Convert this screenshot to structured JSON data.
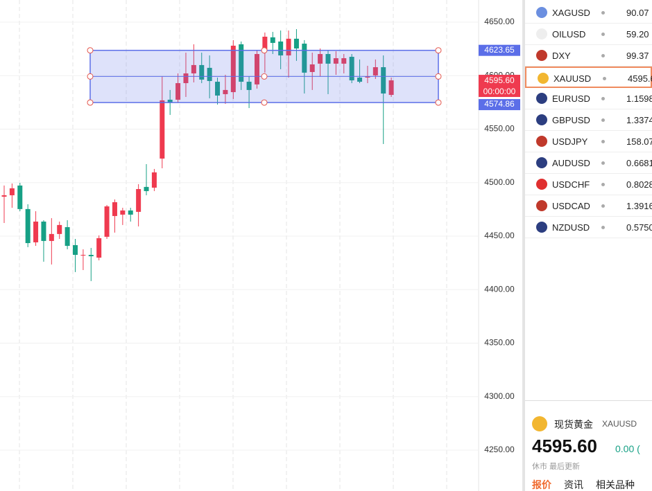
{
  "chart_data": {
    "type": "candlestick",
    "ylim": [
      4211.8,
      4670.7
    ],
    "yticks": [
      {
        "value": 4250,
        "label": "4250.00"
      },
      {
        "value": 4300,
        "label": "4300.00"
      },
      {
        "value": 4350,
        "label": "4350.00"
      },
      {
        "value": 4400,
        "label": "4400.00"
      },
      {
        "value": 4450,
        "label": "4450.00"
      },
      {
        "value": 4500,
        "label": "4500.00"
      },
      {
        "value": 4550,
        "label": "4550.00"
      },
      {
        "value": 4600,
        "label": "4600.00"
      },
      {
        "value": 4650,
        "label": "4650.00"
      }
    ],
    "grid": true,
    "up_color": "#ef3a4f",
    "down_color": "#16a085",
    "open": [
      4486.9,
      4488.2,
      4497.3,
      4475.3,
      4444.2,
      4463.6,
      4445.5,
      4452.0,
      4458.4,
      4441.6,
      4431.9,
      4432.5,
      4429.9,
      4449.4,
      4468.8,
      4470.1,
      4474.0,
      4472.7,
      4496.0,
      4495.3,
      4522.5,
      4577.5,
      4577.5,
      4593.0,
      4602.1,
      4609.9,
      4607.3,
      4594.3,
      4582.7,
      4584.6,
      4629.3,
      4594.3,
      4591.8,
      4623.5,
      4635.8,
      4631.9,
      4618.9,
      4634.5,
      4629.9,
      4603.4,
      4611.2,
      4620.2,
      4611.2,
      4611.2,
      4617.6,
      4598.2,
      4598.2,
      4600.2,
      4607.9,
      4582.0
    ],
    "high": [
      4497.3,
      4499.2,
      4499.8,
      4479.8,
      4473.3,
      4464.9,
      4466.8,
      4463.6,
      4464.9,
      4447.4,
      4437.7,
      4439.0,
      4450.7,
      4479.1,
      4484.3,
      4476.5,
      4476.5,
      4498.6,
      4517.3,
      4512.8,
      4599.5,
      4586.6,
      4602.1,
      4621.5,
      4629.3,
      4621.5,
      4618.9,
      4598.2,
      4600.8,
      4633.2,
      4631.9,
      4599.5,
      4624.1,
      4640.3,
      4640.9,
      4642.2,
      4642.2,
      4643.5,
      4633.2,
      4621.5,
      4625.4,
      4624.1,
      4622.8,
      4620.2,
      4620.2,
      4615.1,
      4609.2,
      4615.1,
      4618.9,
      4598.2
    ],
    "low": [
      4462.3,
      4476.5,
      4473.3,
      4439.7,
      4440.9,
      4426.1,
      4423.5,
      4447.4,
      4437.7,
      4416.4,
      4418.3,
      4408.0,
      4427.4,
      4447.4,
      4453.3,
      4460.4,
      4463.6,
      4459.1,
      4488.2,
      4492.1,
      4513.4,
      4563.3,
      4574.9,
      4580.1,
      4593.7,
      4593.0,
      4578.8,
      4573.0,
      4573.6,
      4578.2,
      4586.6,
      4569.7,
      4587.9,
      4602.8,
      4620.2,
      4606.0,
      4598.2,
      4613.8,
      4583.3,
      4586.6,
      4599.5,
      4582.7,
      4600.8,
      4602.1,
      4593.0,
      4593.0,
      4593.0,
      4596.9,
      4536.1,
      4580.1
    ],
    "close": [
      4488.2,
      4494.7,
      4475.3,
      4443.5,
      4463.6,
      4445.5,
      4452.0,
      4460.4,
      4440.9,
      4432.5,
      4432.5,
      4431.2,
      4448.1,
      4477.8,
      4481.7,
      4474.0,
      4470.1,
      4494.0,
      4492.1,
      4509.6,
      4576.9,
      4574.9,
      4593.0,
      4602.1,
      4609.9,
      4596.3,
      4595.0,
      4581.4,
      4586.6,
      4628.0,
      4594.3,
      4586.6,
      4620.2,
      4636.4,
      4630.6,
      4618.9,
      4634.5,
      4625.4,
      4602.8,
      4610.5,
      4620.2,
      4611.2,
      4616.3,
      4616.3,
      4595.6,
      4594.3,
      4599.5,
      4607.9,
      4583.3,
      4595.6
    ],
    "range_box": {
      "top": 4623.65,
      "bottom": 4574.86,
      "color": "#5b6ee8"
    },
    "last_price": {
      "value": 4595.6,
      "label": "4595.60",
      "countdown": "00:00:00"
    }
  },
  "watchlist": {
    "rows": [
      {
        "symbol": "XAGUSD",
        "price": "90.07"
      },
      {
        "symbol": "OILUSD",
        "price": "59.20"
      },
      {
        "symbol": "DXY",
        "price": "99.37"
      },
      {
        "symbol": "XAUUSD",
        "price": "4595.6"
      },
      {
        "symbol": "EURUSD",
        "price": "1.1598"
      },
      {
        "symbol": "GBPUSD",
        "price": "1.3374"
      },
      {
        "symbol": "USDJPY",
        "price": "158.07"
      },
      {
        "symbol": "AUDUSD",
        "price": "0.6681"
      },
      {
        "symbol": "USDCHF",
        "price": "0.8028"
      },
      {
        "symbol": "USDCAD",
        "price": "1.3916"
      },
      {
        "symbol": "NZDUSD",
        "price": "0.5750"
      }
    ],
    "selected": 3
  },
  "detail": {
    "name": "现货黄金",
    "symbol": "XAUUSD",
    "price": "4595.60",
    "change": "0.00 (",
    "status": "休市 最后更新",
    "tabs": [
      "报价",
      "资讯",
      "相关品种"
    ]
  }
}
